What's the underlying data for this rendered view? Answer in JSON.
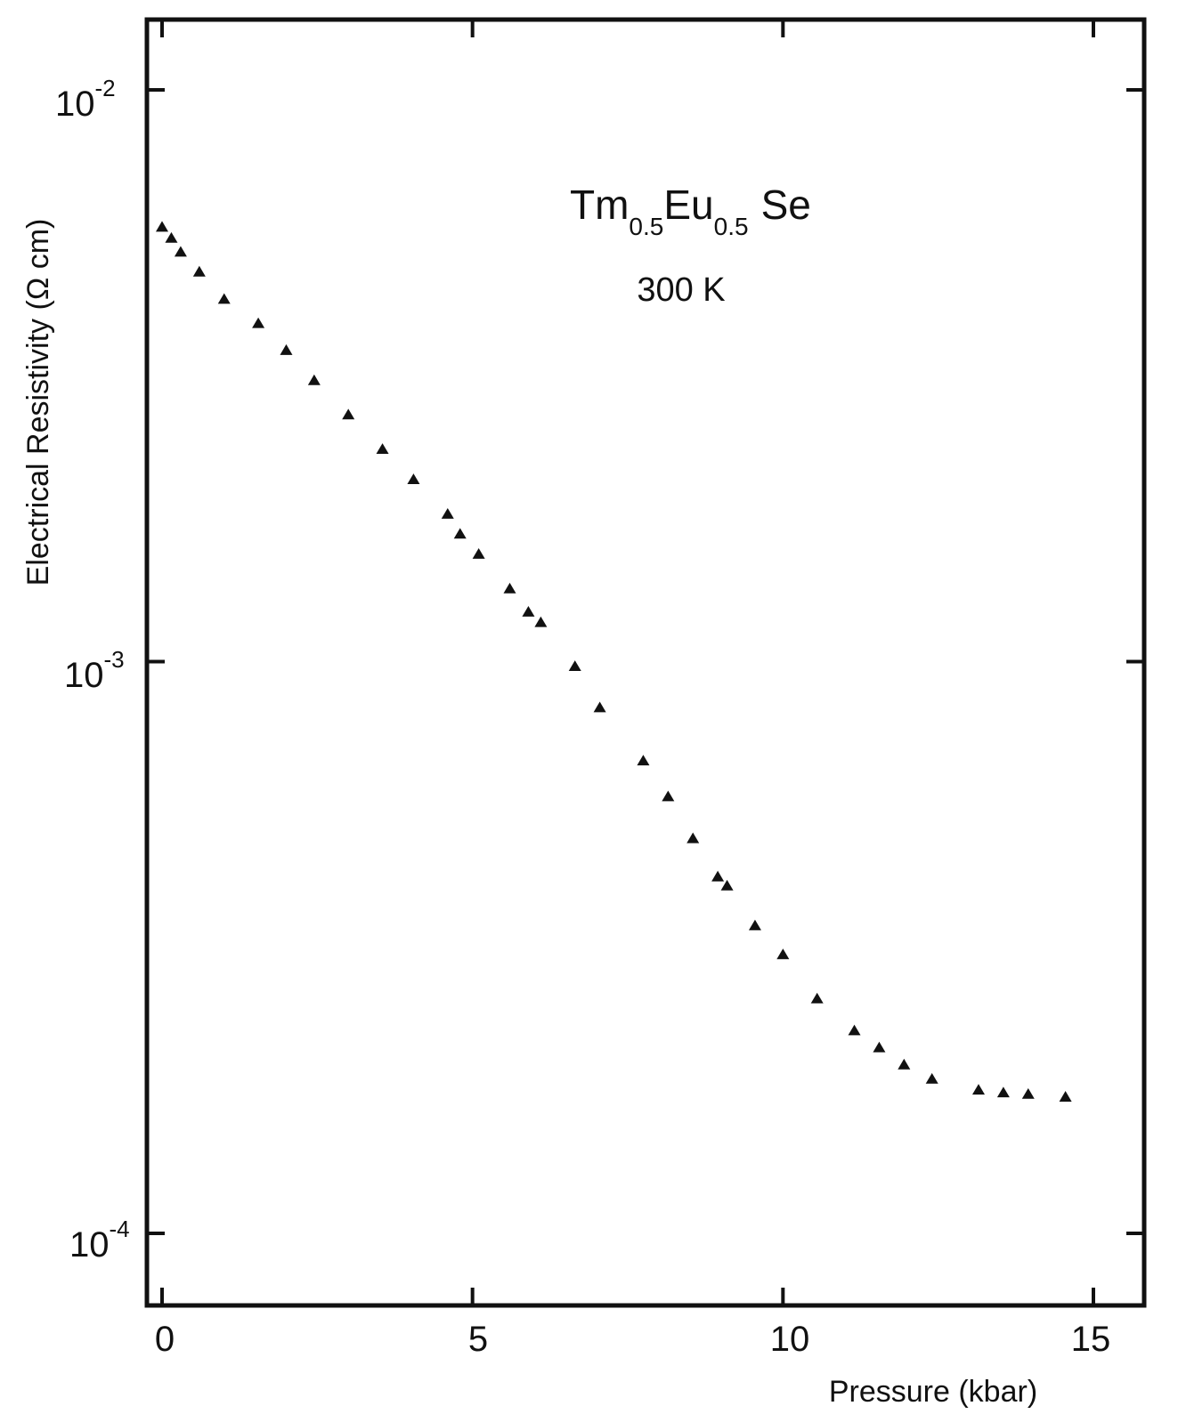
{
  "chart_data": {
    "type": "scatter",
    "xlabel": "Pressure (kbar)",
    "ylabel": "Electrical Resistivity (Ω cm)",
    "xlim": [
      -0.1,
      15.8
    ],
    "ylim": [
      7.5e-05,
      0.0145
    ],
    "yscale": "log",
    "grid": false,
    "x_ticks": [
      "0",
      "5",
      "10",
      "15"
    ],
    "y_ticks": [
      {
        "base": "10",
        "exp": "-2"
      },
      {
        "base": "10",
        "exp": "-3"
      },
      {
        "base": "10",
        "exp": "-4"
      }
    ],
    "annotations": {
      "compound": {
        "el1": "Tm",
        "sub1": "0.5",
        "el2": "Eu",
        "sub2": "0.5",
        "el3": "Se"
      },
      "temperature": "300 K"
    },
    "series": [
      {
        "marker": "triangle",
        "x": [
          0.0,
          0.15,
          0.3,
          0.6,
          1.0,
          1.55,
          2.0,
          2.45,
          3.0,
          3.55,
          4.05,
          4.6,
          4.8,
          5.1,
          5.6,
          5.9,
          6.1,
          6.65,
          7.05,
          7.75,
          8.15,
          8.55,
          8.95,
          9.1,
          9.55,
          10.0,
          10.55,
          11.15,
          11.55,
          11.95,
          12.4,
          13.15,
          13.55,
          13.95,
          14.55
        ],
        "y": [
          0.00575,
          0.0055,
          0.0052,
          0.0048,
          0.0043,
          0.0039,
          0.0035,
          0.0031,
          0.0027,
          0.00235,
          0.00208,
          0.00181,
          0.00167,
          0.00154,
          0.00134,
          0.00122,
          0.00117,
          0.00098,
          0.00083,
          0.00067,
          0.00058,
          0.00049,
          0.00042,
          0.000405,
          0.000345,
          0.000307,
          0.000257,
          0.000226,
          0.000211,
          0.000197,
          0.000186,
          0.000178,
          0.000176,
          0.000175,
          0.000173
        ]
      }
    ]
  }
}
